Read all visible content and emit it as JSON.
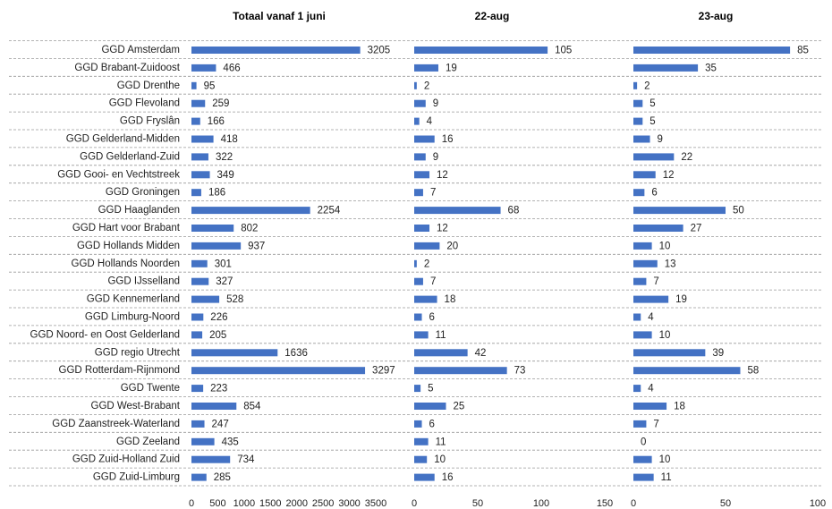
{
  "chart_data": {
    "type": "bar",
    "orientation": "horizontal",
    "categories": [
      "GGD Amsterdam",
      "GGD Brabant-Zuidoost",
      "GGD Drenthe",
      "GGD Flevoland",
      "GGD Fryslân",
      "GGD Gelderland-Midden",
      "GGD Gelderland-Zuid",
      "GGD Gooi- en Vechtstreek",
      "GGD Groningen",
      "GGD Haaglanden",
      "GGD Hart voor Brabant",
      "GGD Hollands Midden",
      "GGD Hollands Noorden",
      "GGD IJsselland",
      "GGD Kennemerland",
      "GGD Limburg-Noord",
      "GGD Noord- en Oost Gelderland",
      "GGD regio Utrecht",
      "GGD Rotterdam-Rijnmond",
      "GGD Twente",
      "GGD West-Brabant",
      "GGD Zaanstreek-Waterland",
      "GGD Zeeland",
      "GGD Zuid-Holland Zuid",
      "GGD Zuid-Limburg"
    ],
    "panels": [
      {
        "title": "Totaal vanaf 1 juni",
        "values": [
          3205,
          466,
          95,
          259,
          166,
          418,
          322,
          349,
          186,
          2254,
          802,
          937,
          301,
          327,
          528,
          226,
          205,
          1636,
          3297,
          223,
          854,
          247,
          435,
          734,
          285
        ],
        "xlim": [
          0,
          3500
        ],
        "ticks": [
          "0",
          "500",
          "1000",
          "1500",
          "2000",
          "2500",
          "3000",
          "3500"
        ]
      },
      {
        "title": "22-aug",
        "values": [
          105,
          19,
          2,
          9,
          4,
          16,
          9,
          12,
          7,
          68,
          12,
          20,
          2,
          7,
          18,
          6,
          11,
          42,
          73,
          5,
          25,
          6,
          11,
          10,
          16
        ],
        "xlim": [
          0,
          150
        ],
        "ticks": [
          "0",
          "50",
          "100",
          "150"
        ]
      },
      {
        "title": "23-aug",
        "values": [
          85,
          35,
          2,
          5,
          5,
          9,
          22,
          12,
          6,
          50,
          27,
          10,
          13,
          7,
          19,
          4,
          10,
          39,
          58,
          4,
          18,
          7,
          0,
          10,
          11
        ],
        "xlim": [
          0,
          100
        ],
        "ticks": [
          "0",
          "50",
          "100"
        ]
      }
    ],
    "bar_color": "#4472c4",
    "grid": false,
    "legend": "none"
  }
}
